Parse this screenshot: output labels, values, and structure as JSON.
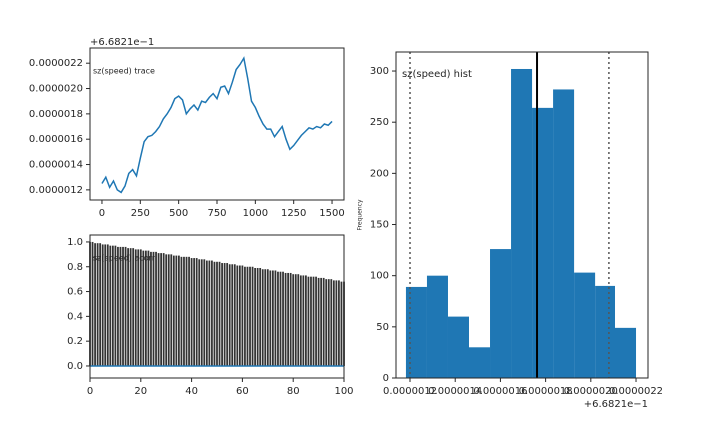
{
  "chart_data": [
    {
      "type": "line",
      "title": "sz(speed) trace",
      "color": "#1f77b4",
      "offset_text": "+6.6821e−1",
      "x": [
        0,
        25,
        50,
        75,
        100,
        125,
        150,
        175,
        200,
        225,
        250,
        275,
        300,
        325,
        350,
        375,
        400,
        425,
        450,
        475,
        500,
        525,
        550,
        575,
        600,
        625,
        650,
        675,
        700,
        725,
        750,
        775,
        800,
        825,
        850,
        875,
        900,
        925,
        950,
        975,
        1000,
        1025,
        1050,
        1075,
        1100,
        1125,
        1150,
        1175,
        1200,
        1225,
        1250,
        1275,
        1300,
        1325,
        1350,
        1375,
        1400,
        1425,
        1450,
        1475,
        1500
      ],
      "values": [
        1.25e-06,
        1.3e-06,
        1.22e-06,
        1.27e-06,
        1.2e-06,
        1.18e-06,
        1.23e-06,
        1.33e-06,
        1.36e-06,
        1.31e-06,
        1.45e-06,
        1.58e-06,
        1.62e-06,
        1.63e-06,
        1.66e-06,
        1.7e-06,
        1.76e-06,
        1.8e-06,
        1.85e-06,
        1.92e-06,
        1.94e-06,
        1.91e-06,
        1.8e-06,
        1.84e-06,
        1.87e-06,
        1.83e-06,
        1.9e-06,
        1.89e-06,
        1.93e-06,
        1.96e-06,
        1.92e-06,
        2.01e-06,
        2.02e-06,
        1.96e-06,
        2.05e-06,
        2.15e-06,
        2.19e-06,
        2.24e-06,
        2.08e-06,
        1.9e-06,
        1.85e-06,
        1.78e-06,
        1.72e-06,
        1.68e-06,
        1.68e-06,
        1.62e-06,
        1.66e-06,
        1.7e-06,
        1.6e-06,
        1.52e-06,
        1.55e-06,
        1.59e-06,
        1.63e-06,
        1.66e-06,
        1.69e-06,
        1.68e-06,
        1.7e-06,
        1.69e-06,
        1.72e-06,
        1.71e-06,
        1.74e-06
      ],
      "xlim": [
        -78,
        1578
      ],
      "ylim": [
        1.12e-06,
        2.32e-06
      ],
      "xticks": [
        0,
        250,
        500,
        750,
        1000,
        1250,
        1500
      ],
      "yticks": [
        {
          "value": 1.2e-06,
          "label": "0.0000012"
        },
        {
          "value": 1.4e-06,
          "label": "0.0000014"
        },
        {
          "value": 1.6e-06,
          "label": "0.0000016"
        },
        {
          "value": 1.8e-06,
          "label": "0.0000018"
        },
        {
          "value": 2e-06,
          "label": "0.0000020"
        },
        {
          "value": 2.2e-06,
          "label": "0.0000022"
        }
      ]
    },
    {
      "type": "bar",
      "title": "sz(speed) acorr",
      "color": "#333333",
      "baseline_color": "#1f77b4",
      "x": [
        0,
        1,
        2,
        3,
        4,
        5,
        6,
        7,
        8,
        9,
        10,
        11,
        12,
        13,
        14,
        15,
        16,
        17,
        18,
        19,
        20,
        21,
        22,
        23,
        24,
        25,
        26,
        27,
        28,
        29,
        30,
        31,
        32,
        33,
        34,
        35,
        36,
        37,
        38,
        39,
        40,
        41,
        42,
        43,
        44,
        45,
        46,
        47,
        48,
        49,
        50,
        51,
        52,
        53,
        54,
        55,
        56,
        57,
        58,
        59,
        60,
        61,
        62,
        63,
        64,
        65,
        66,
        67,
        68,
        69,
        70,
        71,
        72,
        73,
        74,
        75,
        76,
        77,
        78,
        79,
        80,
        81,
        82,
        83,
        84,
        85,
        86,
        87,
        88,
        89,
        90,
        91,
        92,
        93,
        94,
        95,
        96,
        97,
        98,
        99,
        100
      ],
      "values": [
        1.0,
        1.0,
        0.99,
        0.99,
        0.99,
        0.98,
        0.98,
        0.98,
        0.97,
        0.97,
        0.97,
        0.96,
        0.96,
        0.96,
        0.96,
        0.95,
        0.95,
        0.95,
        0.94,
        0.94,
        0.94,
        0.93,
        0.93,
        0.93,
        0.92,
        0.92,
        0.92,
        0.91,
        0.91,
        0.91,
        0.9,
        0.9,
        0.9,
        0.89,
        0.89,
        0.89,
        0.88,
        0.88,
        0.88,
        0.88,
        0.87,
        0.87,
        0.87,
        0.86,
        0.86,
        0.86,
        0.85,
        0.85,
        0.85,
        0.84,
        0.84,
        0.84,
        0.83,
        0.83,
        0.83,
        0.82,
        0.82,
        0.82,
        0.81,
        0.81,
        0.81,
        0.8,
        0.8,
        0.8,
        0.8,
        0.79,
        0.79,
        0.79,
        0.78,
        0.78,
        0.78,
        0.77,
        0.77,
        0.77,
        0.76,
        0.76,
        0.76,
        0.75,
        0.75,
        0.75,
        0.74,
        0.74,
        0.74,
        0.73,
        0.73,
        0.73,
        0.72,
        0.72,
        0.72,
        0.72,
        0.71,
        0.71,
        0.71,
        0.7,
        0.7,
        0.7,
        0.69,
        0.69,
        0.69,
        0.68,
        0.68
      ],
      "xlim": [
        0,
        100
      ],
      "ylim": [
        -0.097,
        1.056
      ],
      "xticks": [
        0,
        20,
        40,
        60,
        80,
        100
      ],
      "yticks": [
        {
          "value": 0,
          "label": "0.0"
        },
        0.2,
        0.4,
        0.6,
        0.8,
        {
          "value": 1,
          "label": "1.0"
        }
      ]
    },
    {
      "type": "histogram",
      "title": "sz(speed) hist",
      "ylabel": "Frequency",
      "color": "#1f77b4",
      "offset_text": "+6.6821e−1",
      "bins": [
        1.182e-06,
        1.275e-06,
        1.368e-06,
        1.461e-06,
        1.554e-06,
        1.647e-06,
        1.74e-06,
        1.833e-06,
        1.926e-06,
        2.019e-06,
        2.107e-06,
        2.2e-06
      ],
      "counts": [
        89,
        100,
        60,
        30,
        126,
        302,
        264,
        282,
        103,
        90,
        49
      ],
      "mean": 1.762e-06,
      "quantiles": [
        1.2e-06,
        2.08e-06
      ],
      "xlim": [
        1.138e-06,
        2.253e-06
      ],
      "ylim": [
        0,
        318.6
      ],
      "xticks": [
        {
          "value": 1.2e-06,
          "label": "0.0000012"
        },
        {
          "value": 1.4e-06,
          "label": "0.0000014"
        },
        {
          "value": 1.6e-06,
          "label": "0.0000016"
        },
        {
          "value": 1.8e-06,
          "label": "0.0000018"
        },
        {
          "value": 2e-06,
          "label": "0.0000020"
        },
        {
          "value": 2.2e-06,
          "label": "0.0000022"
        }
      ],
      "yticks": [
        0,
        50,
        100,
        150,
        200,
        250,
        300
      ]
    }
  ]
}
